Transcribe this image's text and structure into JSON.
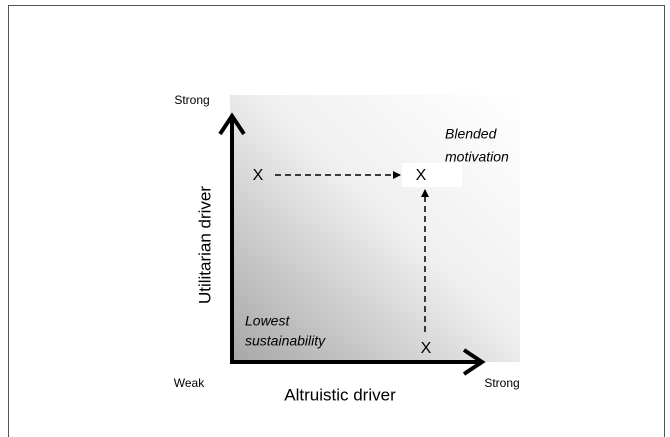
{
  "axes": {
    "y_label": "Utilitarian driver",
    "x_label": "Altruistic driver",
    "y_top": "Strong",
    "origin": "Weak",
    "x_right": "Strong"
  },
  "regions": {
    "top_right": [
      "Blended",
      "motivation"
    ],
    "bottom_left": [
      "Lowest",
      "sustainability"
    ]
  },
  "points": [
    "X",
    "X",
    "X"
  ]
}
